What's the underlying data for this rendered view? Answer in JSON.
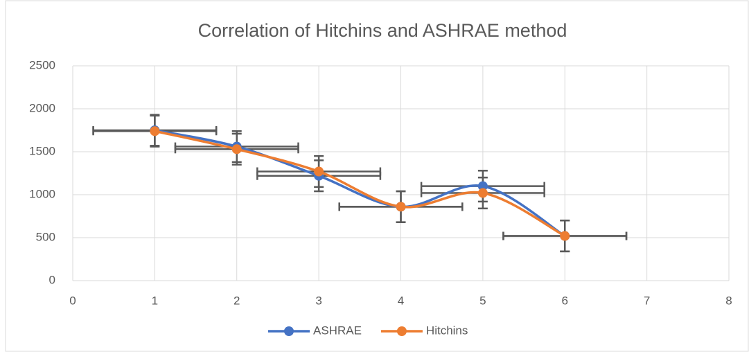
{
  "chart_data": {
    "type": "scatter",
    "title": "Correlation of Hitchins and ASHRAE method",
    "x": [
      1,
      2,
      3,
      4,
      5,
      6
    ],
    "series": [
      {
        "name": "ASHRAE",
        "color": "#4472c4",
        "values": [
          1750,
          1560,
          1220,
          860,
          1100,
          520
        ],
        "x_error": 0.75,
        "y_error": 180
      },
      {
        "name": "Hitchins",
        "color": "#ed7d31",
        "values": [
          1740,
          1530,
          1270,
          860,
          1020,
          520
        ],
        "x_error": 0.75,
        "y_error": 180
      }
    ],
    "error_bar_color": "#595959",
    "smooth": true,
    "xlim": [
      0,
      8
    ],
    "xticks": [
      0,
      1,
      2,
      3,
      4,
      5,
      6,
      7,
      8
    ],
    "ylim": [
      0,
      2500
    ],
    "yticks": [
      0,
      500,
      1000,
      1500,
      2000,
      2500
    ],
    "grid": true,
    "legend": "bottom"
  }
}
